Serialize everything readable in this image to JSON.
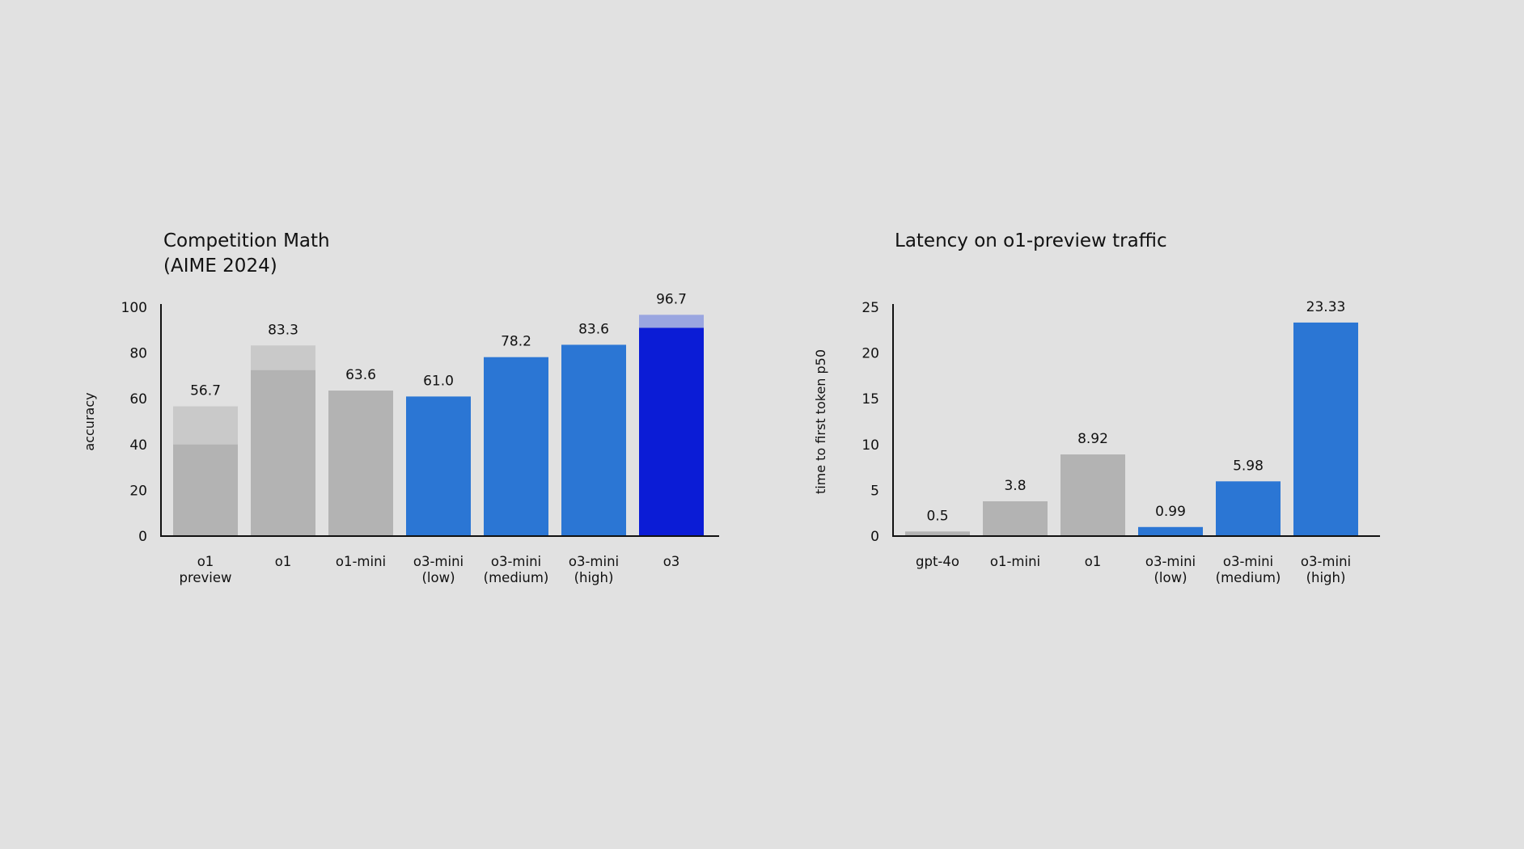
{
  "colors": {
    "background": "#e1e1e1",
    "gray": "#b3b3b3",
    "gray_light": "#c9c9c9",
    "blue": "#2b76d4",
    "blue_dark": "#0b1cd6",
    "blue_light": "#9aa6e0",
    "axis": "#111111"
  },
  "chart_data": [
    {
      "type": "bar",
      "title": "Competition Math\n(AIME 2024)",
      "xlabel": "",
      "ylabel": "accuracy",
      "ylim": [
        0,
        100
      ],
      "yticks": [
        "0",
        "20",
        "40",
        "60",
        "80",
        "100"
      ],
      "categories": [
        "o1\npreview",
        "o1",
        "o1-mini",
        "o3-mini\n(low)",
        "o3-mini\n(medium)",
        "o3-mini\n(high)",
        "o3"
      ],
      "values": [
        56.7,
        83.3,
        63.6,
        61.0,
        78.2,
        83.6,
        96.7
      ],
      "value_labels": [
        "56.7",
        "83.3",
        "63.6",
        "61.0",
        "78.2",
        "83.6",
        "96.7"
      ],
      "inner_values": [
        40,
        72.5,
        null,
        null,
        null,
        null,
        91
      ],
      "styles": [
        "gray",
        "gray",
        "gray",
        "blue",
        "blue",
        "blue",
        "blue_dark"
      ]
    },
    {
      "type": "bar",
      "title": "Latency on o1-preview traffic",
      "xlabel": "",
      "ylabel": "time to first token p50",
      "ylim": [
        0,
        25
      ],
      "yticks": [
        "0",
        "5",
        "10",
        "15",
        "20",
        "25"
      ],
      "categories": [
        "gpt-4o",
        "o1-mini",
        "o1",
        "o3-mini\n(low)",
        "o3-mini\n(medium)",
        "o3-mini\n(high)"
      ],
      "values": [
        0.5,
        3.8,
        8.92,
        0.99,
        5.98,
        23.33
      ],
      "value_labels": [
        "0.5",
        "3.8",
        "8.92",
        "0.99",
        "5.98",
        "23.33"
      ],
      "inner_values": [
        null,
        null,
        null,
        null,
        null,
        null
      ],
      "styles": [
        "gray",
        "gray",
        "gray",
        "blue",
        "blue",
        "blue"
      ]
    }
  ]
}
